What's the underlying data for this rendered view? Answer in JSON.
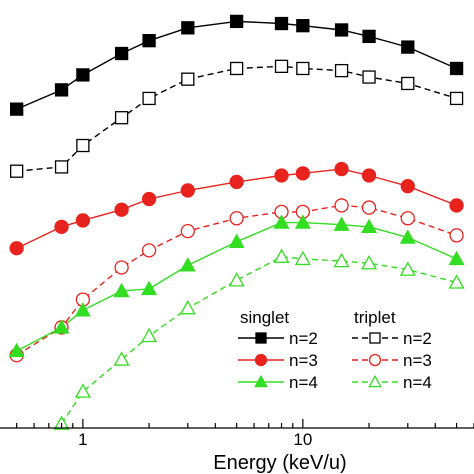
{
  "chart_data": {
    "type": "line",
    "xlabel": "Energy (keV/u)",
    "xscale": "log",
    "xlim": [
      0.42,
      60
    ],
    "ylim": [
      0,
      1
    ],
    "x_tick_labels": [
      {
        "value": 1,
        "label": "1"
      },
      {
        "value": 10,
        "label": "10"
      }
    ],
    "grid": false,
    "legend": {
      "placement": "bottom-right",
      "groups": [
        {
          "title": "singlet",
          "entries": [
            "n=2",
            "n=3",
            "n=4"
          ]
        },
        {
          "title": "triplet",
          "entries": [
            "n=2",
            "n=3",
            "n=4"
          ]
        }
      ]
    },
    "series": [
      {
        "name": "n=2",
        "group": "singlet",
        "color": "#000000",
        "marker": "square",
        "fill": "filled",
        "line": "solid",
        "x": [
          0.5,
          0.8,
          1.0,
          1.5,
          2.0,
          3.0,
          5.0,
          8.0,
          10.0,
          15.0,
          20.0,
          30.0,
          50.0
        ],
        "y": [
          0.745,
          0.79,
          0.825,
          0.875,
          0.905,
          0.935,
          0.95,
          0.945,
          0.94,
          0.93,
          0.915,
          0.89,
          0.84
        ]
      },
      {
        "name": "n=2",
        "group": "triplet",
        "color": "#000000",
        "marker": "square",
        "fill": "open",
        "line": "dashed",
        "x": [
          0.5,
          0.8,
          1.0,
          1.5,
          2.0,
          3.0,
          5.0,
          8.0,
          10.0,
          15.0,
          20.0,
          30.0,
          50.0
        ],
        "y": [
          0.6,
          0.61,
          0.66,
          0.725,
          0.77,
          0.815,
          0.84,
          0.845,
          0.84,
          0.835,
          0.82,
          0.805,
          0.77
        ]
      },
      {
        "name": "n=3",
        "group": "singlet",
        "color": "#e8221d",
        "marker": "circle",
        "fill": "filled",
        "line": "solid",
        "x": [
          0.5,
          0.8,
          1.0,
          1.5,
          2.0,
          3.0,
          5.0,
          8.0,
          10.0,
          15.0,
          20.0,
          30.0,
          50.0
        ],
        "y": [
          0.42,
          0.47,
          0.485,
          0.51,
          0.535,
          0.555,
          0.575,
          0.59,
          0.595,
          0.605,
          0.59,
          0.565,
          0.52
        ]
      },
      {
        "name": "n=3",
        "group": "triplet",
        "color": "#e8221d",
        "marker": "circle",
        "fill": "open",
        "line": "dashed",
        "x": [
          0.5,
          0.8,
          1.0,
          1.5,
          2.0,
          3.0,
          5.0,
          8.0,
          10.0,
          15.0,
          20.0,
          30.0,
          50.0
        ],
        "y": [
          0.17,
          0.235,
          0.3,
          0.375,
          0.415,
          0.46,
          0.49,
          0.505,
          0.505,
          0.52,
          0.515,
          0.49,
          0.45
        ]
      },
      {
        "name": "n=4",
        "group": "singlet",
        "color": "#33dd22",
        "marker": "triangle",
        "fill": "filled",
        "line": "solid",
        "x": [
          0.5,
          0.8,
          1.0,
          1.5,
          2.0,
          3.0,
          5.0,
          8.0,
          10.0,
          15.0,
          20.0,
          30.0,
          50.0
        ],
        "y": [
          0.18,
          0.235,
          0.275,
          0.32,
          0.325,
          0.38,
          0.435,
          0.48,
          0.48,
          0.475,
          0.47,
          0.445,
          0.395
        ]
      },
      {
        "name": "n=4",
        "group": "triplet",
        "color": "#33dd22",
        "marker": "triangle",
        "fill": "open",
        "line": "dashed",
        "x": [
          0.8,
          1.0,
          1.5,
          2.0,
          3.0,
          5.0,
          8.0,
          10.0,
          15.0,
          20.0,
          30.0,
          50.0
        ],
        "y": [
          0.01,
          0.085,
          0.16,
          0.215,
          0.28,
          0.345,
          0.4,
          0.395,
          0.39,
          0.385,
          0.37,
          0.34
        ]
      }
    ]
  }
}
